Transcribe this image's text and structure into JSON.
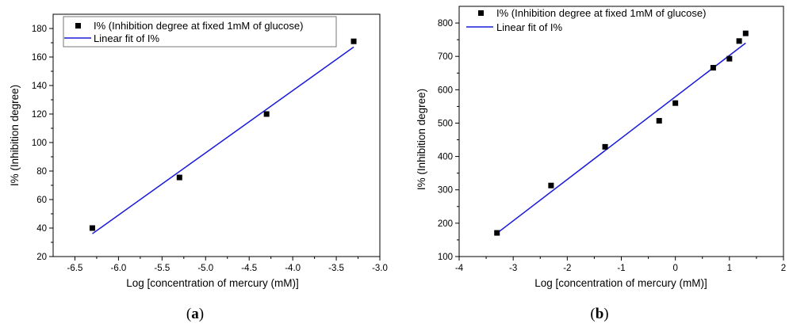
{
  "chart_data": [
    {
      "type": "scatter",
      "panel": "a",
      "caption": {
        "open": "(",
        "letter": "a",
        "close": ")"
      },
      "xlabel": "Log [concentration of mercury (mM)]",
      "ylabel": "I% (Inhibition degree)",
      "xlim": [
        -6.75,
        -3.0
      ],
      "ylim": [
        20,
        190
      ],
      "xticks": [
        -6.5,
        -6.0,
        -5.5,
        -5.0,
        -4.5,
        -4.0,
        -3.5,
        -3.0
      ],
      "xtick_labels": [
        "-6.5",
        "-6.0",
        "-5.5",
        "-5.0",
        "-4.5",
        "-4.0",
        "-3.5",
        "-3.0"
      ],
      "yticks": [
        20,
        40,
        60,
        80,
        100,
        120,
        140,
        160,
        180
      ],
      "ytick_labels": [
        "20",
        "40",
        "60",
        "80",
        "100",
        "120",
        "140",
        "160",
        "180"
      ],
      "series": [
        {
          "name": "I% (Inhibition degree at fixed 1mM of glucose)",
          "kind": "points",
          "x": [
            -6.3,
            -5.3,
            -4.3,
            -3.3
          ],
          "y": [
            40,
            75.5,
            120,
            171
          ]
        }
      ],
      "fit": {
        "name": "Linear fit of I%",
        "x": [
          -6.3,
          -3.3
        ],
        "y": [
          36,
          167
        ],
        "color": "#1a1adb"
      },
      "legend": "top-left"
    },
    {
      "type": "scatter",
      "panel": "b",
      "caption": {
        "open": "(",
        "letter": "b",
        "close": ")"
      },
      "xlabel": "Log [concentration of mercury (mM)]",
      "ylabel": "I% (Inhibition degree)",
      "xlim": [
        -4,
        2
      ],
      "ylim": [
        100,
        850
      ],
      "xticks": [
        -4,
        -3,
        -2,
        -1,
        0,
        1,
        2
      ],
      "xtick_labels": [
        "-4",
        "-3",
        "-2",
        "-1",
        "0",
        "1",
        "2"
      ],
      "yticks": [
        100,
        200,
        300,
        400,
        500,
        600,
        700,
        800
      ],
      "ytick_labels": [
        "100",
        "200",
        "300",
        "400",
        "500",
        "600",
        "700",
        "800"
      ],
      "series": [
        {
          "name": "I% (Inhibition degree at fixed 1mM of glucose)",
          "kind": "points",
          "x": [
            -3.3,
            -2.3,
            -1.3,
            -0.3,
            0,
            0.7,
            1.0,
            1.18,
            1.3
          ],
          "y": [
            171,
            313,
            429,
            507,
            560,
            666,
            693,
            746,
            769
          ]
        }
      ],
      "fit": {
        "name": "Linear fit of I%",
        "x": [
          -3.3,
          1.3
        ],
        "y": [
          170,
          740
        ],
        "color": "#1a1adb"
      },
      "legend": "top-left"
    }
  ]
}
